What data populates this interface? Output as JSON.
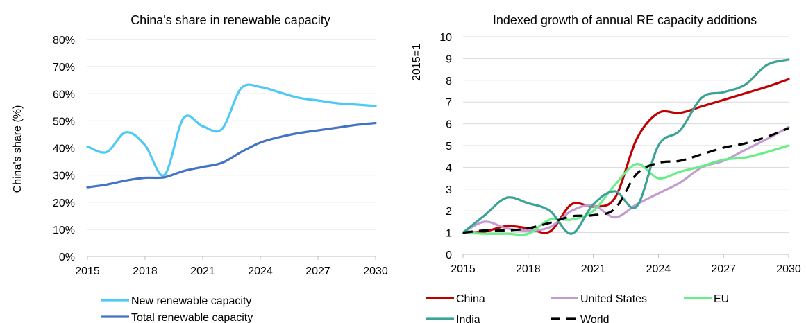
{
  "chart_data": [
    {
      "type": "line",
      "title": "China's share in renewable capacity",
      "xlabel": "",
      "ylabel": "China's share (%)",
      "xlim": [
        2015,
        2030
      ],
      "ylim": [
        0,
        80
      ],
      "x_ticks": [
        "2015",
        "2018",
        "2021",
        "2024",
        "2027",
        "2030"
      ],
      "y_ticks": [
        "0%",
        "10%",
        "20%",
        "30%",
        "40%",
        "50%",
        "60%",
        "70%",
        "80%"
      ],
      "x": [
        2015,
        2016,
        2017,
        2018,
        2019,
        2020,
        2021,
        2022,
        2023,
        2024,
        2025,
        2026,
        2027,
        2028,
        2029,
        2030
      ],
      "series": [
        {
          "name": "New renewable capacity",
          "color": "#4dc9f6",
          "values": [
            40.5,
            38.5,
            45.8,
            41,
            30,
            51,
            48,
            47,
            62,
            62.5,
            60.5,
            58.5,
            57.5,
            56.5,
            56,
            55.5
          ]
        },
        {
          "name": "Total renewable capacity",
          "color": "#4472c4",
          "values": [
            25.5,
            26.5,
            28,
            29,
            29.2,
            31.5,
            33,
            34.5,
            38.5,
            42,
            44,
            45.5,
            46.5,
            47.5,
            48.5,
            49.2
          ]
        }
      ],
      "legend_position": "bottom"
    },
    {
      "type": "line",
      "title": "Indexed growth of annual RE capacity additions",
      "xlabel": "",
      "ylabel": "2015=1",
      "xlim": [
        2015,
        2030
      ],
      "ylim": [
        0,
        10
      ],
      "x_ticks": [
        "2015",
        "2018",
        "2021",
        "2024",
        "2027",
        "2030"
      ],
      "y_ticks": [
        "0",
        "1",
        "2",
        "3",
        "4",
        "5",
        "6",
        "7",
        "8",
        "9",
        "10"
      ],
      "x": [
        2015,
        2016,
        2017,
        2018,
        2019,
        2020,
        2021,
        2022,
        2023,
        2024,
        2025,
        2026,
        2027,
        2028,
        2029,
        2030
      ],
      "series": [
        {
          "name": "China",
          "color": "#c00000",
          "dash": false,
          "values": [
            1,
            1.05,
            1.3,
            1.2,
            1.05,
            2.3,
            2.2,
            2.6,
            5.3,
            6.5,
            6.5,
            6.8,
            7.1,
            7.4,
            7.7,
            8.05
          ]
        },
        {
          "name": "United States",
          "color": "#c39bd3",
          "dash": false,
          "values": [
            1,
            1.5,
            1.2,
            1.1,
            1.25,
            2.0,
            2.25,
            1.7,
            2.3,
            2.8,
            3.3,
            4.0,
            4.3,
            4.8,
            5.3,
            5.85
          ]
        },
        {
          "name": "EU",
          "color": "#66ee88",
          "dash": false,
          "values": [
            1,
            0.95,
            0.95,
            0.95,
            1.6,
            1.6,
            2.0,
            3.2,
            4.15,
            3.5,
            3.8,
            4.05,
            4.35,
            4.45,
            4.7,
            5.0
          ]
        },
        {
          "name": "India",
          "color": "#3aa394",
          "dash": false,
          "values": [
            1,
            1.8,
            2.6,
            2.35,
            2.0,
            0.95,
            2.3,
            2.9,
            2.2,
            5.0,
            5.7,
            7.2,
            7.45,
            7.8,
            8.7,
            8.95
          ]
        },
        {
          "name": "World",
          "color": "#000000",
          "dash": true,
          "values": [
            1,
            1.1,
            1.1,
            1.2,
            1.45,
            1.75,
            1.8,
            2.1,
            3.7,
            4.2,
            4.3,
            4.6,
            4.9,
            5.1,
            5.4,
            5.8
          ]
        }
      ],
      "legend_position": "bottom"
    }
  ]
}
